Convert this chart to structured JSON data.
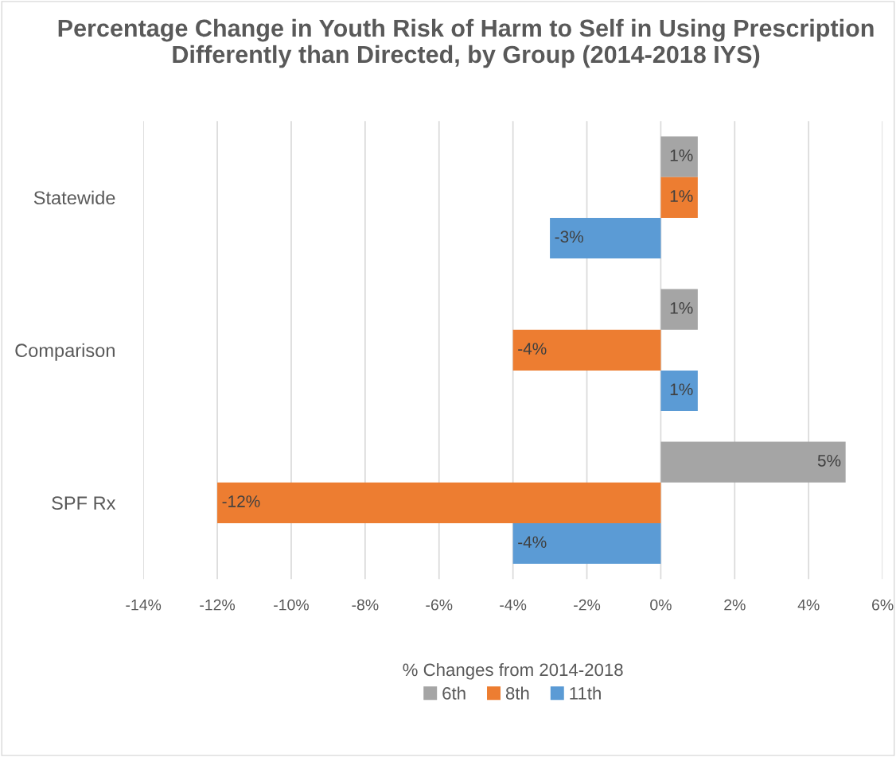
{
  "chart_data": {
    "type": "bar",
    "orientation": "horizontal",
    "title": "Percentage Change in Youth Risk of Harm to Self in Using Prescription Differently than Directed, by Group (2014-2018 IYS)",
    "xlabel": "% Changes from 2014-2018",
    "categories": [
      "Statewide",
      "Comparison",
      "SPF Rx"
    ],
    "series": [
      {
        "name": "6th",
        "color": "#a5a5a5",
        "values": [
          1,
          1,
          5
        ],
        "value_labels": [
          "1%",
          "1%",
          "5%"
        ]
      },
      {
        "name": "8th",
        "color": "#ed7d31",
        "values": [
          1,
          -4,
          -12
        ],
        "value_labels": [
          "1%",
          "-4%",
          "-12%"
        ]
      },
      {
        "name": "11th",
        "color": "#5b9bd5",
        "values": [
          -3,
          1,
          -4
        ],
        "value_labels": [
          "-3%",
          "1%",
          "-4%"
        ]
      }
    ],
    "xlim": [
      -14,
      6
    ],
    "xticks": [
      {
        "value": -14,
        "label": "-14%"
      },
      {
        "value": -12,
        "label": "-12%"
      },
      {
        "value": -10,
        "label": "-10%"
      },
      {
        "value": -8,
        "label": "-8%"
      },
      {
        "value": -6,
        "label": "-6%"
      },
      {
        "value": -4,
        "label": "-4%"
      },
      {
        "value": -2,
        "label": "-2%"
      },
      {
        "value": 0,
        "label": "0%"
      },
      {
        "value": 2,
        "label": "2%"
      },
      {
        "value": 4,
        "label": "4%"
      },
      {
        "value": 6,
        "label": "6%"
      }
    ],
    "grid": "x",
    "legend": "bottom"
  }
}
